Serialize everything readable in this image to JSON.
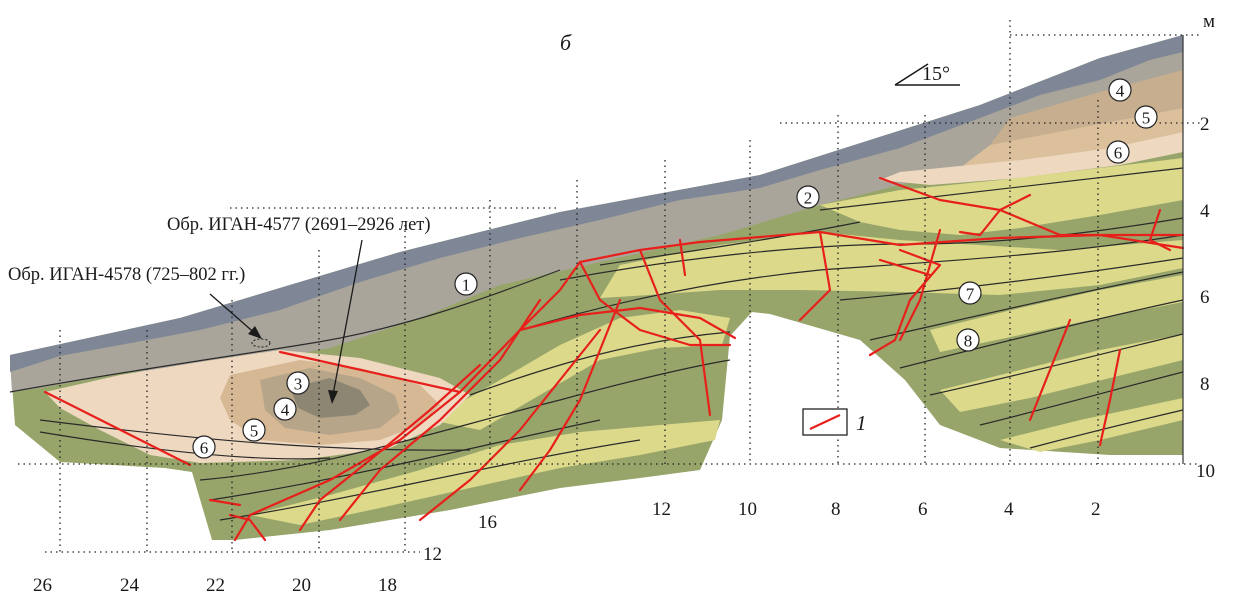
{
  "panel_letter": "б",
  "units_label": "м",
  "slope_label": "15°",
  "right_axis_ticks": [
    "2",
    "4",
    "6",
    "8",
    "10"
  ],
  "bottom_axis_upper_ticks": [
    "16",
    "12",
    "10",
    "8",
    "6",
    "4",
    "2"
  ],
  "bottom_axis_lower_ticks": [
    "26",
    "24",
    "22",
    "20",
    "18"
  ],
  "lower_left_tick": "12",
  "annotations": {
    "sample_4577": "Обр. ИГАН-4577 (2691–2926 лет)",
    "sample_4578": "Обр. ИГАН-4578 (725–802 гг.)"
  },
  "legend": {
    "item_number": "1",
    "fracture_color": "#e8201c"
  },
  "unit_markers": [
    "1",
    "2",
    "3",
    "4",
    "5",
    "6",
    "4",
    "5",
    "6",
    "7",
    "8"
  ],
  "colors": {
    "topsoil": "#7f8796",
    "gray_loam": "#a9a59b",
    "tan_sand": "#d6b894",
    "pale_sand": "#eed8c0",
    "olive": "#97a56a",
    "yellow": "#dcd98a",
    "dark_core": "#8c8672"
  }
}
